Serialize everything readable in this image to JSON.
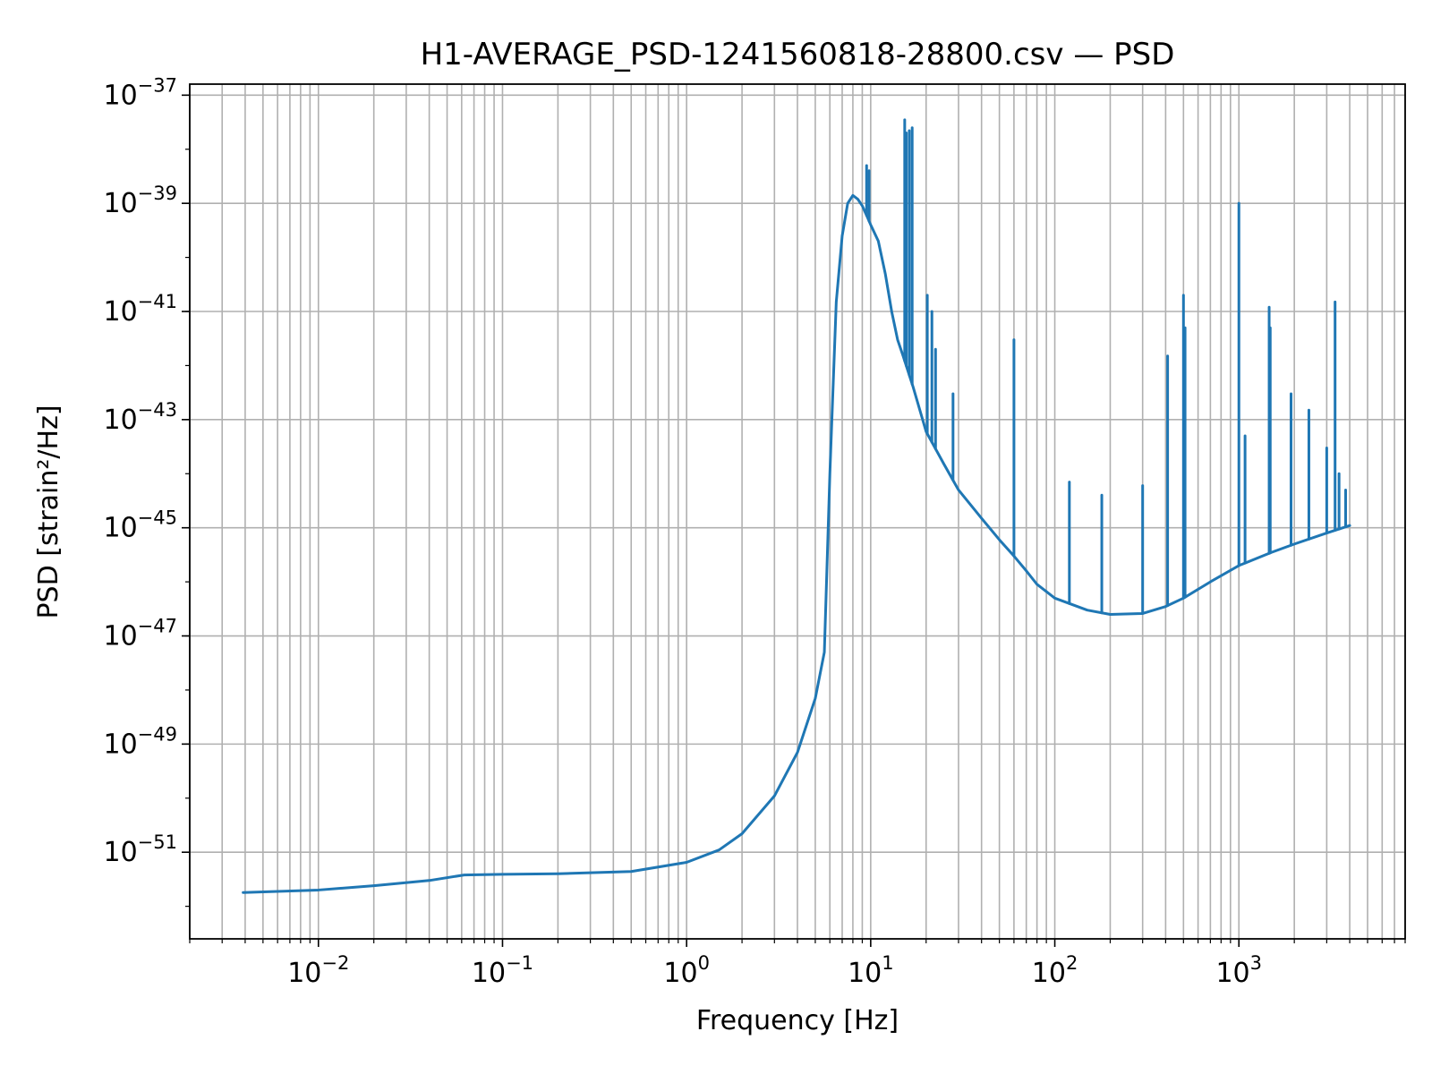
{
  "chart_data": {
    "type": "line",
    "title": "H1-AVERAGE_PSD-1241560818-28800.csv — PSD",
    "xlabel": "Frequency [Hz]",
    "ylabel": "PSD [strain²/Hz]",
    "xscale": "log",
    "yscale": "log",
    "grid": true,
    "xlim": [
      0.002,
      8000
    ],
    "ylim": [
      2.5e-53,
      1.6e-37
    ],
    "x_ticks": [
      {
        "base": "10",
        "exp": "−2",
        "value": 0.01
      },
      {
        "base": "10",
        "exp": "−1",
        "value": 0.1
      },
      {
        "base": "10",
        "exp": "0",
        "value": 1
      },
      {
        "base": "10",
        "exp": "1",
        "value": 10
      },
      {
        "base": "10",
        "exp": "2",
        "value": 100
      },
      {
        "base": "10",
        "exp": "3",
        "value": 1000
      }
    ],
    "y_ticks": [
      {
        "base": "10",
        "exp": "−37",
        "value": 1e-37
      },
      {
        "base": "10",
        "exp": "−39",
        "value": 1e-39
      },
      {
        "base": "10",
        "exp": "−41",
        "value": 1e-41
      },
      {
        "base": "10",
        "exp": "−43",
        "value": 1e-43
      },
      {
        "base": "10",
        "exp": "−45",
        "value": 1e-45
      },
      {
        "base": "10",
        "exp": "−47",
        "value": 1e-47
      },
      {
        "base": "10",
        "exp": "−49",
        "value": 1e-49
      },
      {
        "base": "10",
        "exp": "−51",
        "value": 1e-51
      }
    ],
    "series": [
      {
        "name": "PSD",
        "color": "#1f77b4",
        "x": [
          0.0039,
          0.01,
          0.02,
          0.04,
          0.062,
          0.1,
          0.2,
          0.5,
          1.0,
          1.5,
          2.0,
          3.0,
          4.0,
          5.0,
          5.6,
          6.0,
          6.5,
          7.0,
          7.5,
          8.0,
          8.5,
          9.0,
          9.5,
          10.0,
          11.0,
          12.0,
          13.0,
          14.0,
          15.0,
          17.0,
          20.0,
          25.0,
          30.0,
          40.0,
          50.0,
          60.0,
          70.0,
          80.0,
          100.0,
          150.0,
          200.0,
          300.0,
          400.0,
          500.0,
          700.0,
          1000.0,
          1500.0,
          2000.0,
          3000.0,
          4000.0
        ],
        "y": [
          1.8e-52,
          2e-52,
          2.4e-52,
          3e-52,
          3.8e-52,
          3.9e-52,
          4e-52,
          4.4e-52,
          6.5e-52,
          1.1e-51,
          2.2e-51,
          1.1e-50,
          7e-50,
          7e-49,
          5e-48,
          1e-44,
          1.5e-41,
          2.5e-40,
          1e-39,
          1.4e-39,
          1.2e-39,
          9e-40,
          6e-40,
          4e-40,
          2e-40,
          5e-41,
          1e-41,
          3e-42,
          1.5e-42,
          4e-43,
          6e-44,
          1.5e-44,
          5e-45,
          1.5e-45,
          6e-46,
          3e-46,
          1.6e-46,
          9e-47,
          5e-47,
          3e-47,
          2.5e-47,
          2.6e-47,
          3.5e-47,
          5e-47,
          1e-46,
          2e-46,
          3.5e-46,
          5e-46,
          8e-46,
          1.1e-45
        ],
        "spikes": [
          {
            "x": 9.5,
            "y": 5e-39
          },
          {
            "x": 9.8,
            "y": 4e-39
          },
          {
            "x": 15.3,
            "y": 3.5e-38
          },
          {
            "x": 15.6,
            "y": 2e-38
          },
          {
            "x": 16.2,
            "y": 2.2e-38
          },
          {
            "x": 16.8,
            "y": 2.5e-38
          },
          {
            "x": 20.3,
            "y": 2e-41
          },
          {
            "x": 21.5,
            "y": 1e-41
          },
          {
            "x": 22.5,
            "y": 2e-42
          },
          {
            "x": 28.0,
            "y": 3e-43
          },
          {
            "x": 60.0,
            "y": 3e-42
          },
          {
            "x": 120.0,
            "y": 7e-45
          },
          {
            "x": 180.0,
            "y": 4e-45
          },
          {
            "x": 300.0,
            "y": 6e-45
          },
          {
            "x": 410.0,
            "y": 1.5e-42
          },
          {
            "x": 500.0,
            "y": 2e-41
          },
          {
            "x": 510.0,
            "y": 5e-42
          },
          {
            "x": 1000.0,
            "y": 1e-39
          },
          {
            "x": 1080.0,
            "y": 5e-44
          },
          {
            "x": 1460.0,
            "y": 1.2e-41
          },
          {
            "x": 1480.0,
            "y": 5e-42
          },
          {
            "x": 1920.0,
            "y": 3e-43
          },
          {
            "x": 2400.0,
            "y": 1.5e-43
          },
          {
            "x": 3000.0,
            "y": 3e-44
          },
          {
            "x": 3330.0,
            "y": 1.5e-41
          },
          {
            "x": 3500.0,
            "y": 1e-44
          },
          {
            "x": 3800.0,
            "y": 5e-45
          }
        ]
      }
    ]
  }
}
